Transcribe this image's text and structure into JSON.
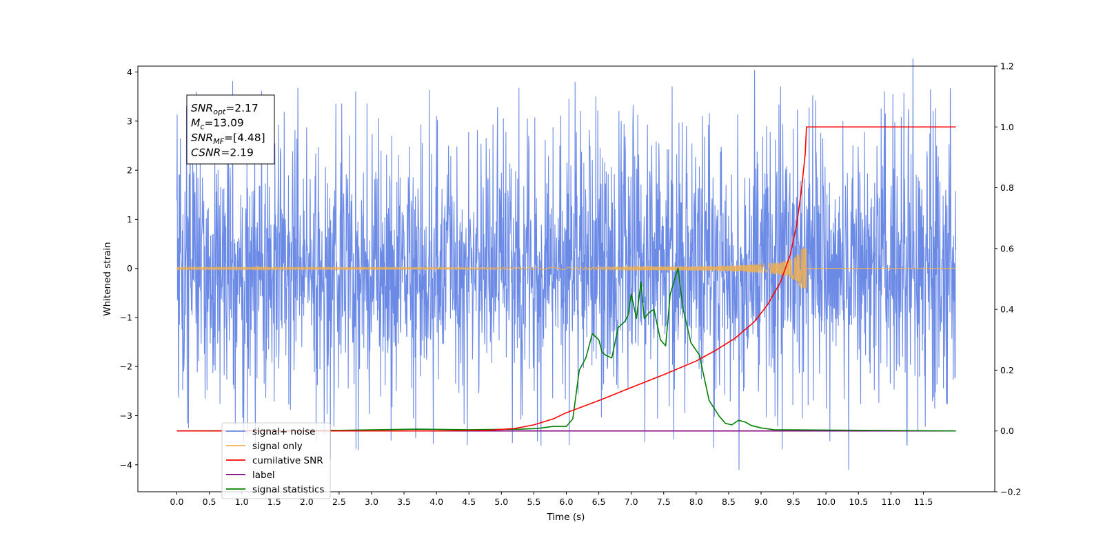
{
  "chart_data": {
    "type": "line",
    "title": "",
    "xlabel": "Time (s)",
    "ylabel": "Whitened strain",
    "y2label": "",
    "xlim": [
      -0.6,
      12.6
    ],
    "ylim": [
      -4.55,
      4.12
    ],
    "y2lim": [
      -0.2,
      1.2
    ],
    "x_ticks": [
      0.0,
      0.5,
      1.0,
      1.5,
      2.0,
      2.5,
      3.0,
      3.5,
      4.0,
      4.5,
      5.0,
      5.5,
      6.0,
      6.5,
      7.0,
      7.5,
      8.0,
      8.5,
      9.0,
      9.5,
      10.0,
      10.5,
      11.0,
      11.5
    ],
    "x_tick_labels": [
      "0.0",
      "0.5",
      "1.0",
      "1.5",
      "2.0",
      "2.5",
      "3.0",
      "3.5",
      "4.0",
      "4.5",
      "5.0",
      "5.5",
      "6.0",
      "6.5",
      "7.0",
      "7.5",
      "8.0",
      "8.5",
      "9.0",
      "9.5",
      "10.0",
      "10.5",
      "11.0",
      "11.5"
    ],
    "y_ticks": [
      -4,
      -3,
      -2,
      -1,
      0,
      1,
      2,
      3,
      4
    ],
    "y_tick_labels": [
      "−4",
      "−3",
      "−2",
      "−1",
      "0",
      "1",
      "2",
      "3",
      "4"
    ],
    "y2_ticks": [
      -0.2,
      0.0,
      0.2,
      0.4,
      0.6,
      0.8,
      1.0,
      1.2
    ],
    "y2_tick_labels": [
      "−0.2",
      "0.0",
      "0.2",
      "0.4",
      "0.6",
      "0.8",
      "1.0",
      "1.2"
    ],
    "grid": false,
    "legend_position": "lower-left",
    "series": [
      {
        "name": "signal+ noise",
        "axis": "left",
        "color": "#6b8ae6",
        "style": "noise",
        "x_range": [
          0.0,
          12.0
        ],
        "typical_range": [
          -1.8,
          2.0
        ],
        "extremes": [
          {
            "x": 0.03,
            "y": -2.63
          },
          {
            "x": 0.15,
            "y": 3.3
          },
          {
            "x": 0.18,
            "y": -3.25
          },
          {
            "x": 0.9,
            "y": -3.2
          },
          {
            "x": 1.2,
            "y": 3.05
          },
          {
            "x": 2.45,
            "y": 3.35
          },
          {
            "x": 2.93,
            "y": 3.35
          },
          {
            "x": 3.3,
            "y": -3.5
          },
          {
            "x": 3.68,
            "y": -3.45
          },
          {
            "x": 4.0,
            "y": 3.1
          },
          {
            "x": 5.4,
            "y": 3.05
          },
          {
            "x": 6.22,
            "y": 3.2
          },
          {
            "x": 7.1,
            "y": 3.12
          },
          {
            "x": 7.63,
            "y": 3.7
          },
          {
            "x": 8.27,
            "y": -3.65
          },
          {
            "x": 8.66,
            "y": -4.1
          },
          {
            "x": 9.3,
            "y": 3.7
          },
          {
            "x": 10.35,
            "y": -4.1
          },
          {
            "x": 10.9,
            "y": 3.6
          },
          {
            "x": 11.25,
            "y": -3.6
          },
          {
            "x": 11.65,
            "y": 3.2
          }
        ]
      },
      {
        "name": "signal only",
        "axis": "left",
        "color": "#f0b050",
        "style": "chirp",
        "x_range": [
          0.0,
          12.0
        ],
        "merger_time": 9.7,
        "peak_amplitude": 0.4
      },
      {
        "name": "cumilative SNR",
        "axis": "right",
        "color": "#ff0000",
        "style": "line",
        "x": [
          0.0,
          4.0,
          4.8,
          5.2,
          5.5,
          5.8,
          6.0,
          6.5,
          7.0,
          7.5,
          8.0,
          8.3,
          8.6,
          8.9,
          9.1,
          9.3,
          9.45,
          9.55,
          9.62,
          9.68,
          9.7,
          12.0
        ],
        "values": [
          0.0,
          0.0,
          0.002,
          0.008,
          0.02,
          0.04,
          0.06,
          0.1,
          0.143,
          0.185,
          0.23,
          0.265,
          0.305,
          0.36,
          0.415,
          0.49,
          0.58,
          0.68,
          0.79,
          0.91,
          1.0,
          1.0
        ]
      },
      {
        "name": "label",
        "axis": "right",
        "color": "#800080",
        "style": "line",
        "x": [
          0.0,
          12.0
        ],
        "values": [
          0.0,
          0.0
        ]
      },
      {
        "name": "signal statistics",
        "axis": "right",
        "color": "#008000",
        "style": "line",
        "x": [
          0.0,
          2.5,
          3.7,
          4.5,
          5.3,
          5.55,
          5.8,
          6.0,
          6.1,
          6.2,
          6.3,
          6.4,
          6.5,
          6.55,
          6.6,
          6.7,
          6.8,
          6.9,
          6.95,
          7.0,
          7.08,
          7.15,
          7.2,
          7.28,
          7.35,
          7.45,
          7.53,
          7.6,
          7.72,
          7.8,
          7.92,
          8.05,
          8.12,
          8.2,
          8.35,
          8.45,
          8.55,
          8.65,
          8.75,
          8.85,
          9.0,
          9.2,
          12.0
        ],
        "values": [
          0.0,
          0.002,
          0.006,
          0.004,
          0.006,
          0.008,
          0.015,
          0.015,
          0.04,
          0.2,
          0.24,
          0.32,
          0.3,
          0.26,
          0.25,
          0.24,
          0.34,
          0.36,
          0.38,
          0.45,
          0.37,
          0.49,
          0.37,
          0.39,
          0.4,
          0.3,
          0.28,
          0.45,
          0.535,
          0.4,
          0.29,
          0.25,
          0.18,
          0.1,
          0.05,
          0.025,
          0.02,
          0.035,
          0.03,
          0.018,
          0.01,
          0.004,
          0.0
        ]
      }
    ],
    "annotation": {
      "lines": [
        {
          "name": "SNR",
          "sub": "opt",
          "value": "=2.17"
        },
        {
          "name": "M",
          "sub": "c",
          "value": "=13.09"
        },
        {
          "name": "SNR",
          "sub": "MF",
          "value": "=[4.48]"
        },
        {
          "name": "CSNR",
          "sub": "",
          "value": "=2.19"
        }
      ]
    },
    "legend_entries": [
      {
        "label": "signal+ noise",
        "color": "#6b8ae6"
      },
      {
        "label": "signal only",
        "color": "#f0b050"
      },
      {
        "label": "cumilative SNR",
        "color": "#ff0000"
      },
      {
        "label": "label",
        "color": "#800080"
      },
      {
        "label": "signal statistics",
        "color": "#008000"
      }
    ]
  }
}
